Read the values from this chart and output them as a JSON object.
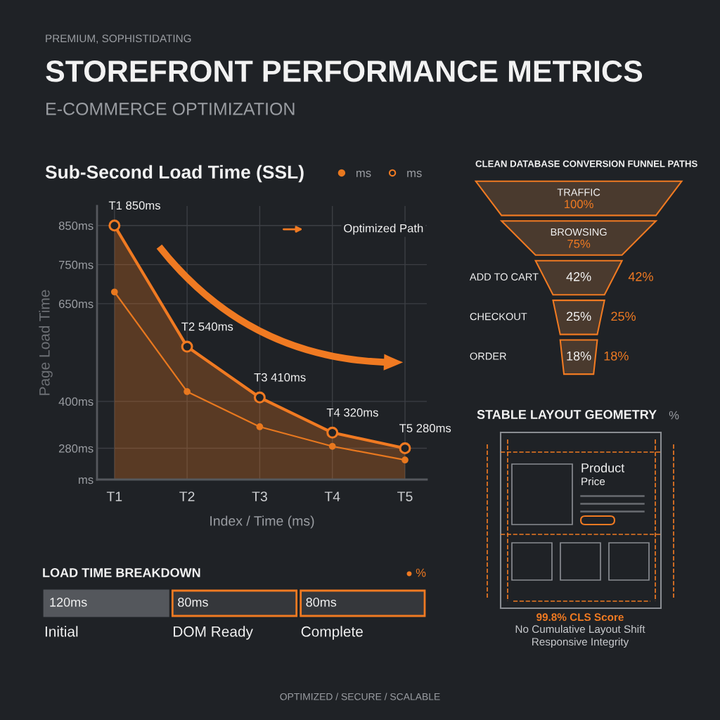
{
  "chart_data": [
    {
      "type": "other",
      "title": "STOREFRONT PERFORMANCE METRICS",
      "subtitle": "E-COMMERCE OPTIMIZATION",
      "annotations": [
        "PREMIUM, SOPHISTIDATING",
        "OPTIMIZED / SECURE / SCALABLE"
      ]
    },
    {
      "type": "line",
      "title": "Sub-Second Load Time (SSL)",
      "xlabel": "Index / Time (ms)",
      "ylabel": "Page Load Time",
      "categories": [
        "T1",
        "T2",
        "T3",
        "T4",
        "T5"
      ],
      "series": [
        {
          "name": "ms",
          "type": "line",
          "color": "#e8781f",
          "values": [
            680,
            425,
            335,
            285,
            250
          ]
        },
        {
          "name": "ms",
          "type": "area",
          "color": "#f07a22",
          "values": [
            850,
            540,
            410,
            320,
            280
          ]
        }
      ],
      "ylim": [
        200,
        900
      ],
      "yticks": [
        {
          "value": 200,
          "label": "ms"
        },
        {
          "value": 280,
          "label": "280ms"
        },
        {
          "value": 400,
          "label": "400ms"
        },
        {
          "value": 650,
          "label": "650ms"
        },
        {
          "value": 750,
          "label": "750ms"
        },
        {
          "value": 850,
          "label": "850ms"
        }
      ],
      "annotations": [
        {
          "text": "T1 850ms",
          "x": "T1",
          "y": 850
        },
        {
          "text": "T2 540ms",
          "x": "T2",
          "y": 540
        },
        {
          "text": "T3 410ms",
          "x": "T3",
          "y": 410
        },
        {
          "text": "T4 320ms",
          "x": "T4",
          "y": 320
        },
        {
          "text": "T5 280ms",
          "x": "T5",
          "y": 280
        },
        "Optimized Path"
      ],
      "grid": true,
      "legend": "top right",
      "marker": "circle",
      "line_style": "solid"
    },
    {
      "type": "other",
      "title": "CLEAN DATABASE CONVERSION FUNNEL PATHS",
      "categories": [
        "TRAFFIC",
        "BROWSING",
        "ADD TO CART",
        "CHECKOUT",
        "ORDER"
      ],
      "values": [
        100,
        75,
        42,
        25,
        18
      ],
      "value_labels": [
        "100%",
        "75%",
        "42%",
        "25%",
        "18%"
      ],
      "annotations": [
        "42%",
        "25%",
        "18%"
      ]
    },
    {
      "type": "other",
      "title": "LOAD TIME BREAKDOWN",
      "categories": [
        "Initial",
        "DOM Ready",
        "Complete"
      ],
      "value_labels": [
        "120ms",
        "80ms",
        "80ms"
      ],
      "colors": [
        "#54575c",
        "#f07a22",
        "#f07a22"
      ],
      "annotations": [
        "%"
      ]
    },
    {
      "type": "other",
      "title": "STABLE LAYOUT GEOMETRY",
      "annotations": [
        "%",
        "Product",
        "Price",
        "99.8% CLS Score",
        "No Cumulative Layout Shift",
        "Responsive Integrity"
      ]
    }
  ]
}
